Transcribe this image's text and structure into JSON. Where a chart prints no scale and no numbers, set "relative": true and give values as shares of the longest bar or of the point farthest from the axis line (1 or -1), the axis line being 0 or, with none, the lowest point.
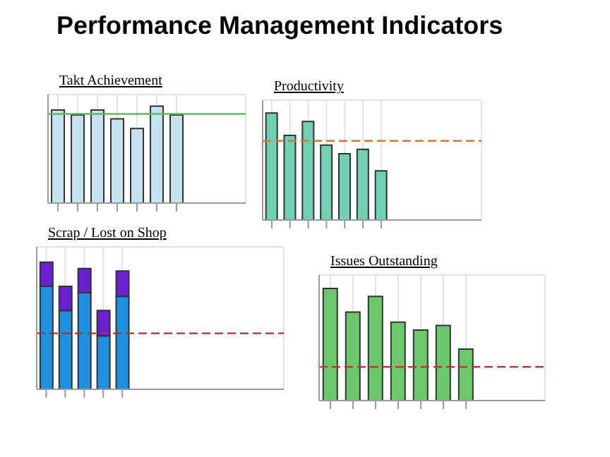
{
  "chart_data": [
    {
      "type": "other",
      "title": "Performance Management  Indicators"
    },
    {
      "type": "bar",
      "title": "Takt Achievement",
      "relative": true,
      "grid": true,
      "categories": [
        null,
        null,
        null,
        null,
        null,
        null,
        null
      ],
      "series": [
        {
          "color": "#c6e2ee",
          "values": [
            0.96,
            0.91,
            0.96,
            0.87,
            0.77,
            1,
            0.91
          ]
        }
      ],
      "ref_lines": [
        {
          "axis": "y",
          "value": 0.92,
          "color": "#5cb85c",
          "line_style": "solid"
        }
      ]
    },
    {
      "type": "bar",
      "title": "Productivity",
      "relative": true,
      "grid": true,
      "categories": [
        null,
        null,
        null,
        null,
        null,
        null,
        null
      ],
      "series": [
        {
          "color": "#6fd0b4",
          "values": [
            1,
            0.79,
            0.92,
            0.7,
            0.62,
            0.66,
            0.46
          ]
        }
      ],
      "ref_lines": [
        {
          "axis": "y",
          "value": 0.74,
          "color": "#d9732f",
          "line_style": "dashed"
        }
      ]
    },
    {
      "type": "bar",
      "title": "Scrap / Lost on Shop",
      "relative": true,
      "grid": true,
      "stacked": true,
      "categories": [
        null,
        null,
        null,
        null,
        null
      ],
      "series": [
        {
          "color": "#1f8fe0",
          "values": [
            0.81,
            0.62,
            0.76,
            0.42,
            0.73
          ]
        },
        {
          "color": "#6a1fd0",
          "values": [
            0.19,
            0.19,
            0.19,
            0.2,
            0.2
          ]
        }
      ],
      "ref_lines": [
        {
          "axis": "y",
          "value": 0.44,
          "color": "#b03030",
          "line_style": "dashed"
        }
      ]
    },
    {
      "type": "bar",
      "title": "Issues Outstanding",
      "relative": true,
      "grid": true,
      "categories": [
        null,
        null,
        null,
        null,
        null,
        null,
        null
      ],
      "series": [
        {
          "color": "#6cc86c",
          "values": [
            1,
            0.79,
            0.93,
            0.7,
            0.63,
            0.67,
            0.46
          ]
        }
      ],
      "ref_lines": [
        {
          "axis": "y",
          "value": 0.3,
          "color": "#c0392b",
          "line_style": "dashed"
        }
      ]
    }
  ]
}
